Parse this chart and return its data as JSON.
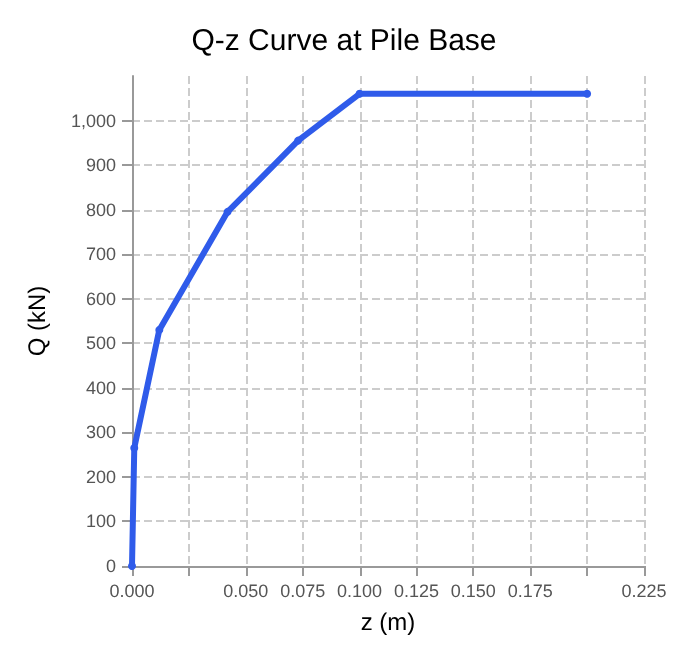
{
  "chart_data": {
    "type": "line",
    "title": "Q-z Curve at Pile Base",
    "xlabel": "z (m)",
    "ylabel": "Q (kN)",
    "series": [
      {
        "color": "#2f5bea",
        "x": [
          0,
          0.001,
          0.012,
          0.042,
          0.073,
          0.1,
          0.2
        ],
        "values": [
          0,
          265,
          530,
          795,
          955,
          1060,
          1060
        ]
      }
    ],
    "xlim": [
      0,
      0.225
    ],
    "xticks": [
      {
        "value": 0,
        "label": "0.000"
      },
      {
        "value": 0.025,
        "label": null
      },
      {
        "value": 0.05,
        "label": "0.050"
      },
      {
        "value": 0.075,
        "label": "0.075"
      },
      {
        "value": 0.1,
        "label": "0.100"
      },
      {
        "value": 0.125,
        "label": "0.125"
      },
      {
        "value": 0.15,
        "label": "0.150"
      },
      {
        "value": 0.175,
        "label": "0.175"
      },
      {
        "value": 0.2,
        "label": null
      },
      {
        "value": 0.225,
        "label": "0.225"
      }
    ],
    "ylim": [
      0,
      1100
    ],
    "yticks": [
      0,
      100,
      200,
      300,
      400,
      500,
      600,
      700,
      800,
      900,
      {
        "value": 1000,
        "label": "1,000"
      }
    ],
    "grid": true,
    "marker": "circle",
    "line_style": "solid"
  }
}
